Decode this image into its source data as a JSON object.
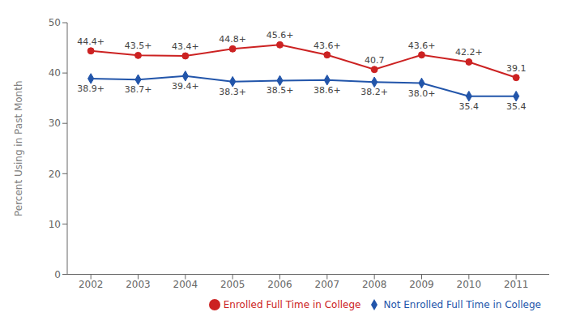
{
  "chart_data": {
    "type": "line",
    "x": [
      2002,
      2003,
      2004,
      2005,
      2006,
      2007,
      2008,
      2009,
      2010,
      2011
    ],
    "series": [
      {
        "name": "Enrolled Full Time in College",
        "color": "#cc2222",
        "marker": "circle",
        "values": [
          44.4,
          43.5,
          43.4,
          44.8,
          45.6,
          43.6,
          40.7,
          43.6,
          42.2,
          39.1
        ],
        "value_labels": [
          "44.4+",
          "43.5+",
          "43.4+",
          "44.8+",
          "45.6+",
          "43.6+",
          "40.7",
          "43.6+",
          "42.2+",
          "39.1"
        ]
      },
      {
        "name": "Not Enrolled Full Time in College",
        "color": "#2255aa",
        "marker": "diamond",
        "values": [
          38.9,
          38.7,
          39.4,
          38.3,
          38.5,
          38.6,
          38.2,
          38.0,
          35.4,
          35.4
        ],
        "value_labels": [
          "38.9+",
          "38.7+",
          "39.4+",
          "38.3+",
          "38.5+",
          "38.6+",
          "38.2+",
          "38.0+",
          "35.4",
          "35.4"
        ]
      }
    ],
    "ylabel": "Percent Using in Past Month",
    "xlim": [
      2001.5,
      2011.7
    ],
    "xticks": [
      2002,
      2003,
      2004,
      2005,
      2006,
      2007,
      2008,
      2009,
      2010,
      2011
    ],
    "ylim": [
      0,
      50
    ],
    "yticks": [
      0,
      10,
      20,
      30,
      40,
      50
    ],
    "grid": false,
    "legend": "lower right",
    "data_labels": true
  }
}
